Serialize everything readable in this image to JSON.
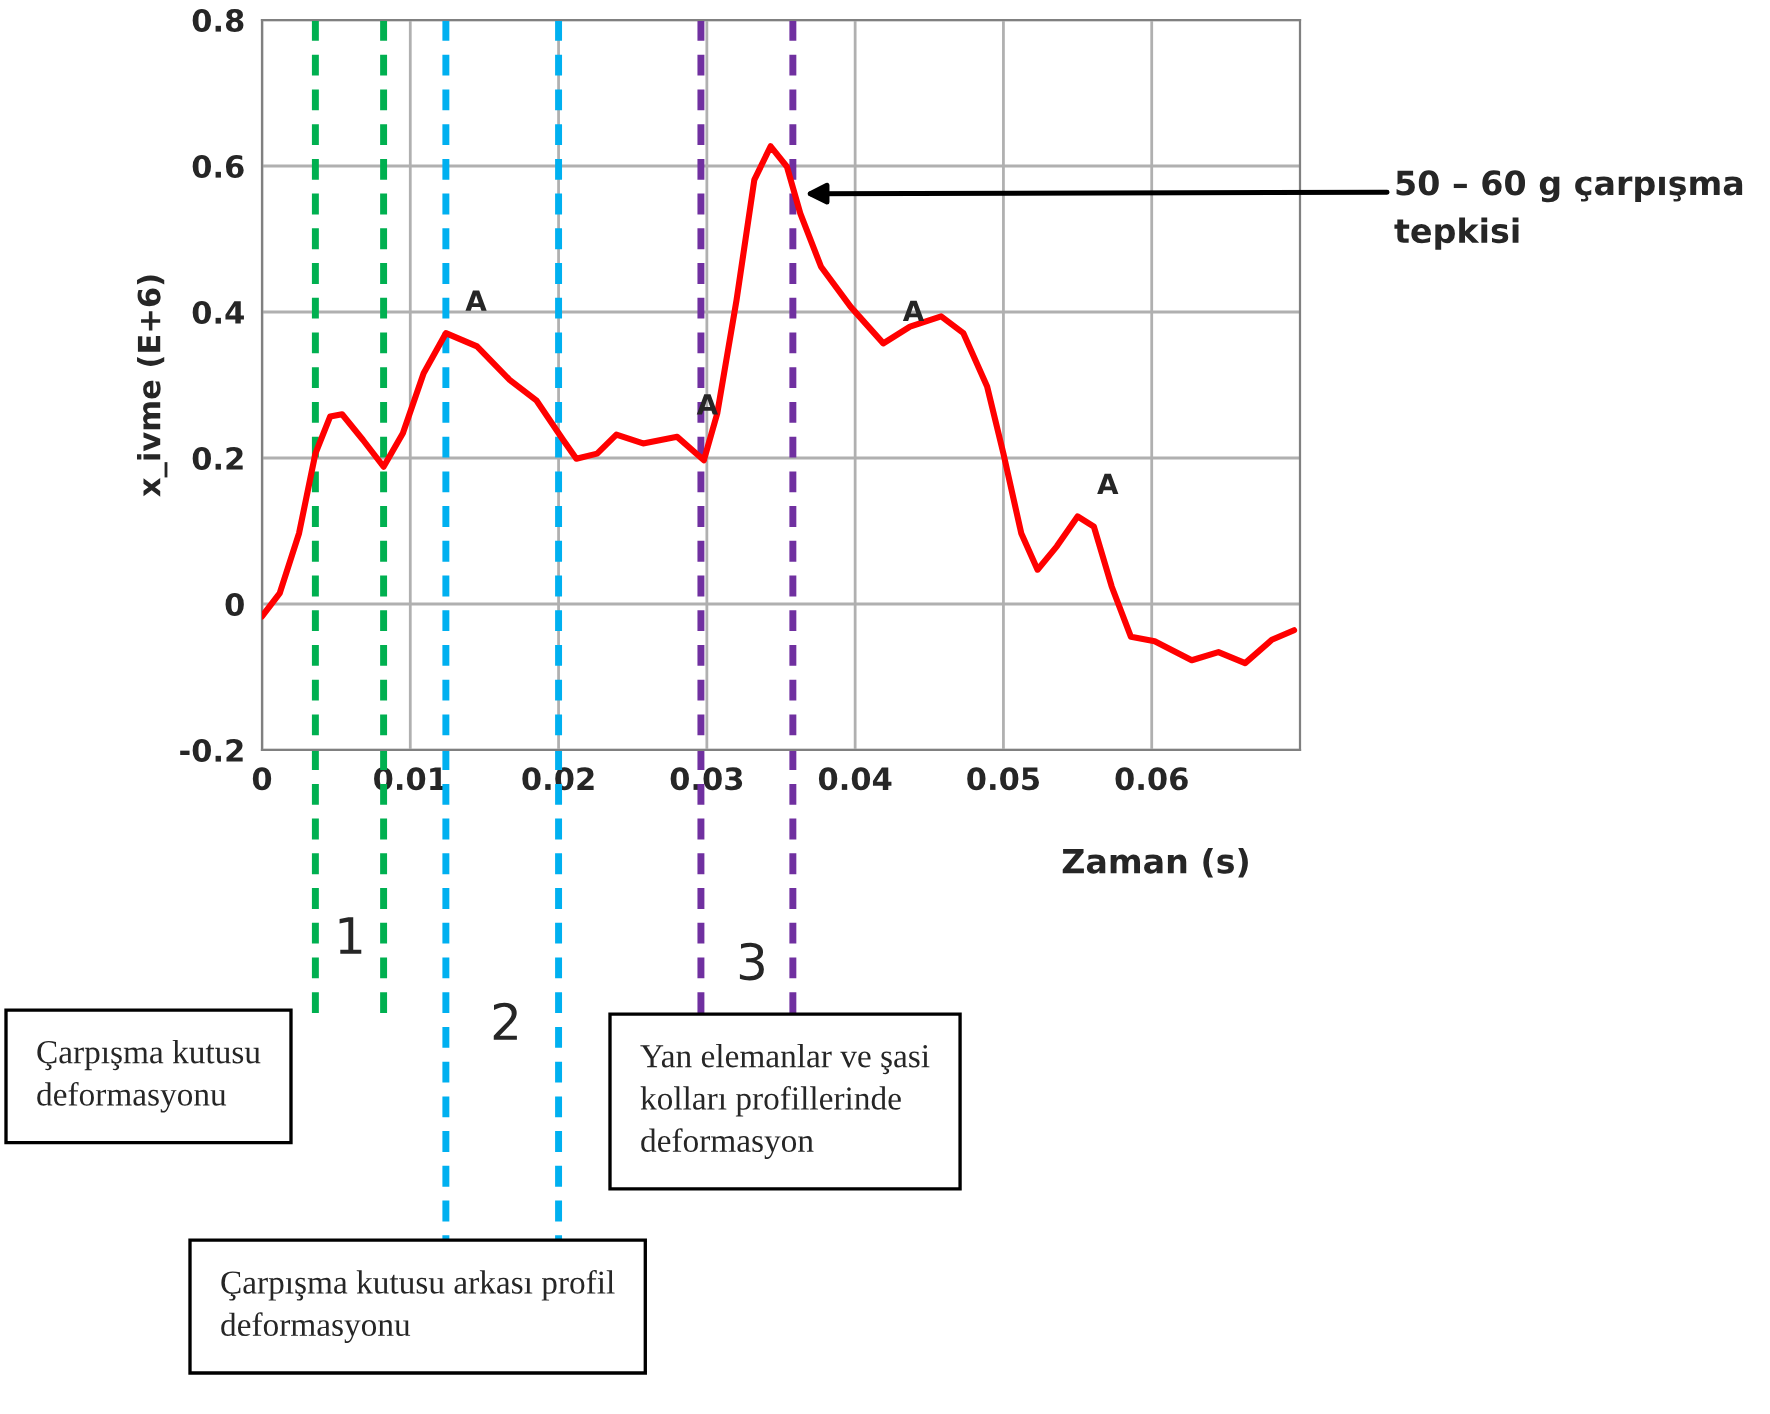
{
  "chart_data": {
    "type": "line",
    "xlabel": "Zaman (s)",
    "ylabel": "x_ivme (E+6)",
    "xlim": [
      0,
      0.07
    ],
    "xticks": [
      0,
      0.01,
      0.02,
      0.03,
      0.04,
      0.05,
      0.06
    ],
    "ylim": [
      -0.2,
      0.8
    ],
    "yticks": [
      {
        "value": -0.2,
        "label": "-0.2"
      },
      0,
      0.2,
      0.4,
      0.6,
      0.8
    ],
    "grid": true,
    "marker": "none",
    "line_style": "solid",
    "series": [
      {
        "color": "#ff0000",
        "x": [
          0,
          0.0012,
          0.0025,
          0.0036,
          0.0046,
          0.0054,
          0.0068,
          0.0082,
          0.0095,
          0.0109,
          0.0124,
          0.0145,
          0.0167,
          0.0185,
          0.0203,
          0.0212,
          0.0226,
          0.0239,
          0.0257,
          0.028,
          0.0298,
          0.0307,
          0.032,
          0.0332,
          0.0343,
          0.0354,
          0.0363,
          0.0377,
          0.0397,
          0.0419,
          0.0437,
          0.0458,
          0.0473,
          0.0489,
          0.05,
          0.0512,
          0.0523,
          0.0536,
          0.055,
          0.0561,
          0.0573,
          0.0586,
          0.0602,
          0.0627,
          0.0645,
          0.0663,
          0.0681,
          0.0696
        ],
        "values": [
          -0.017,
          0.015,
          0.097,
          0.206,
          0.257,
          0.26,
          0.225,
          0.188,
          0.234,
          0.316,
          0.371,
          0.353,
          0.307,
          0.279,
          0.225,
          0.199,
          0.206,
          0.232,
          0.22,
          0.229,
          0.197,
          0.261,
          0.416,
          0.581,
          0.627,
          0.599,
          0.535,
          0.462,
          0.407,
          0.357,
          0.38,
          0.394,
          0.371,
          0.298,
          0.206,
          0.097,
          0.047,
          0.079,
          0.12,
          0.106,
          0.024,
          -0.045,
          -0.051,
          -0.077,
          -0.066,
          -0.081,
          -0.049,
          -0.036
        ]
      }
    ],
    "ref_lines": [
      {
        "axis": "x",
        "value": 0.0036,
        "color": "#00b050",
        "line_style": "dashed"
      },
      {
        "axis": "x",
        "value": 0.0082,
        "color": "#00b050",
        "line_style": "dashed"
      },
      {
        "axis": "x",
        "value": 0.0124,
        "color": "#00b0f0",
        "line_style": "dashed"
      },
      {
        "axis": "x",
        "value": 0.02,
        "color": "#00b0f0",
        "line_style": "dashed"
      },
      {
        "axis": "x",
        "value": 0.0296,
        "color": "#7030a0",
        "line_style": "dashed"
      },
      {
        "axis": "x",
        "value": 0.0358,
        "color": "#7030a0",
        "line_style": "dashed"
      }
    ],
    "annotations": [
      {
        "text": "A",
        "x": 0.0124,
        "y": 0.371
      },
      {
        "text": "A",
        "x": 0.028,
        "y": 0.229
      },
      {
        "text": "A",
        "x": 0.0419,
        "y": 0.357
      },
      {
        "text": "A",
        "x": 0.055,
        "y": 0.12
      },
      "1",
      "2",
      "3",
      {
        "text": "50 – 60 g çarpışma\ntepkisi",
        "x": 0.0366,
        "y": 0.562
      },
      "Çarpışma kutusu\ndeformasyonu",
      "Çarpışma kutusu arkası profil\ndeformasyonu",
      "Yan elemanlar ve şasi\nkolları profillerinde\ndeformasyon"
    ]
  }
}
